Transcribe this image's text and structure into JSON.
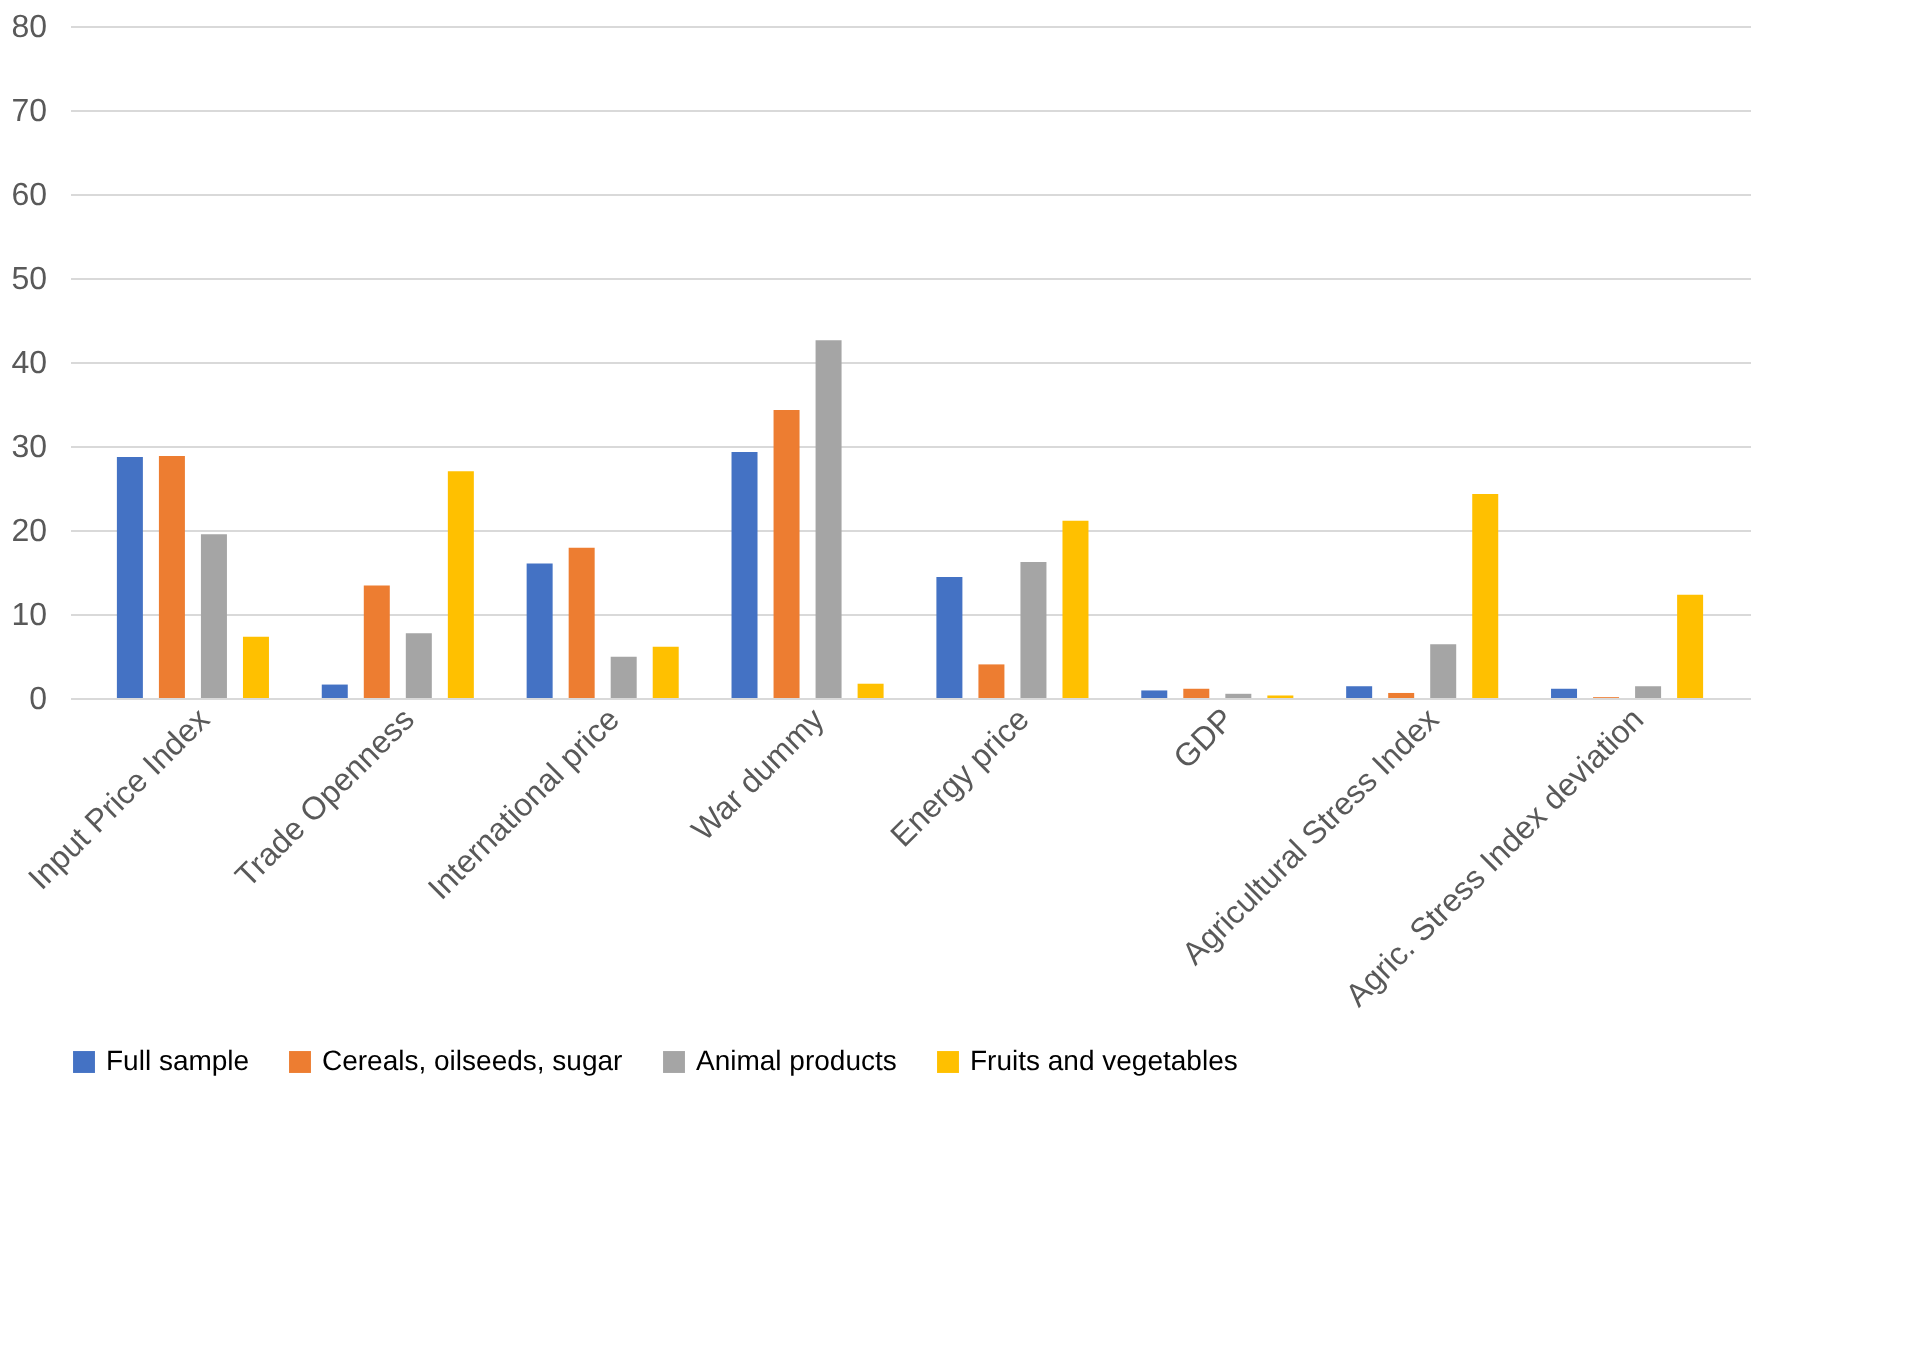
{
  "chart_data": {
    "type": "bar",
    "categories": [
      "Input Price Index",
      "Trade Openness",
      "International price",
      "War dummy",
      "Energy price",
      "GDP",
      "Agricultural Stress Index",
      "Agric. Stress Index deviation"
    ],
    "series": [
      {
        "name": "Full sample",
        "color": "#4472c4",
        "values": [
          28.7,
          1.6,
          16.0,
          29.3,
          14.4,
          0.9,
          1.4,
          1.1
        ]
      },
      {
        "name": "Cereals, oilseeds, sugar",
        "color": "#ed7d31",
        "values": [
          28.8,
          13.4,
          17.9,
          34.3,
          4.0,
          1.1,
          0.6,
          0.1
        ]
      },
      {
        "name": "Animal products",
        "color": "#a5a5a5",
        "values": [
          19.5,
          7.7,
          4.9,
          42.6,
          16.2,
          0.5,
          6.4,
          1.4
        ]
      },
      {
        "name": "Fruits and vegetables",
        "color": "#ffc000",
        "values": [
          7.3,
          27.0,
          6.1,
          1.7,
          21.1,
          0.3,
          24.3,
          12.3
        ]
      }
    ],
    "ylim": [
      0,
      80
    ],
    "yticks": [
      0,
      10,
      20,
      30,
      40,
      50,
      60,
      70,
      80
    ],
    "grid": "y",
    "legend": "bottom"
  }
}
